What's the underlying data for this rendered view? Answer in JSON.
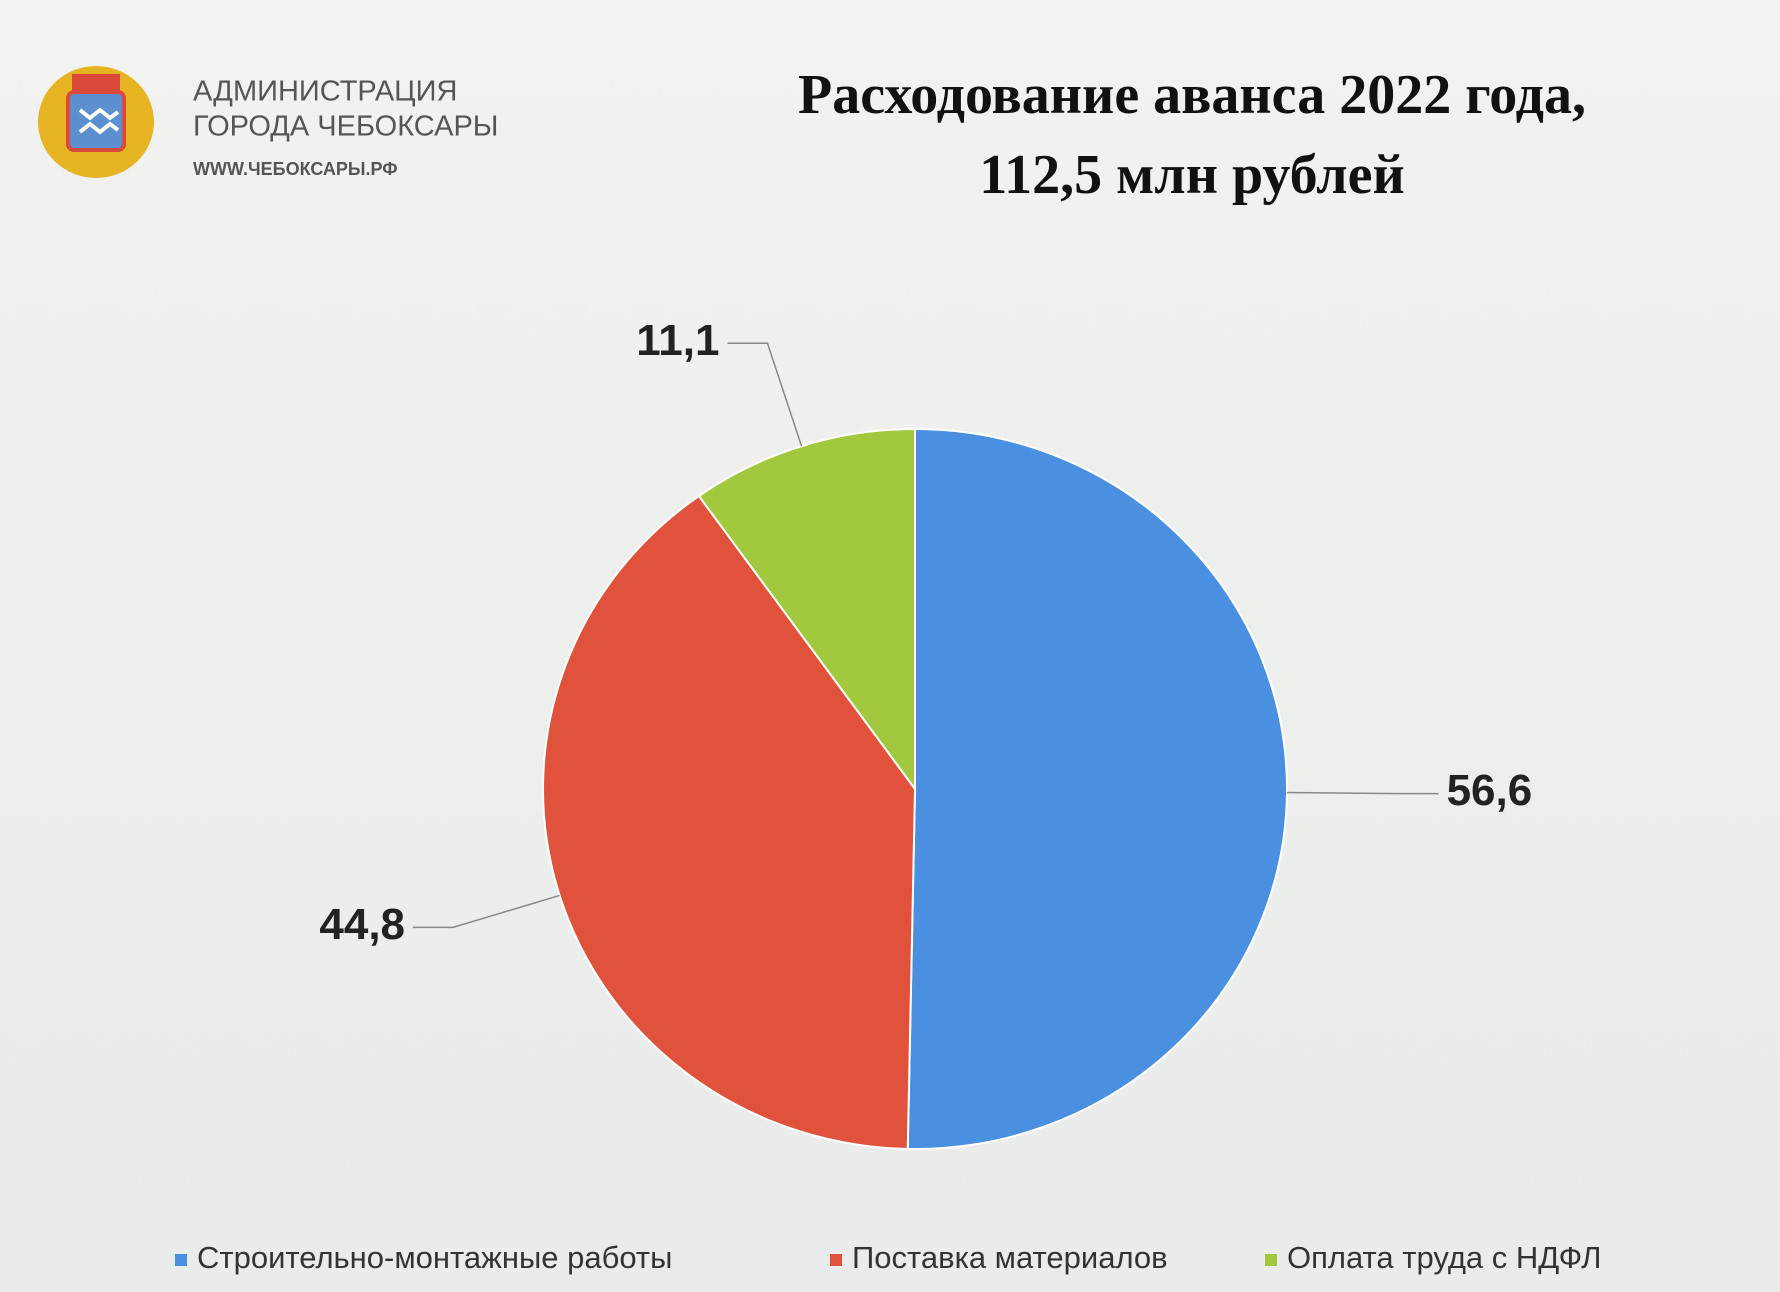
{
  "header": {
    "org_lines": [
      "АДМИНИСТРАЦИЯ",
      "ГОРОДА ЧЕБОКСАРЫ"
    ],
    "site": "WWW.ЧЕБОКСАРЫ.РФ"
  },
  "chart_data": {
    "type": "pie",
    "title": [
      "Расходование аванса 2022 года,",
      "112,5 млн рублей"
    ],
    "categories": [
      "Строительно-монтажные работы",
      "Поставка материалов",
      "Оплата труда с НДФЛ"
    ],
    "values": [
      56.6,
      44.8,
      11.1
    ],
    "value_labels": [
      "56,6",
      "44,8",
      "11,1"
    ],
    "colors": [
      "#4a8fe0",
      "#e0523b",
      "#a2c93e"
    ],
    "legend": "bottom"
  }
}
